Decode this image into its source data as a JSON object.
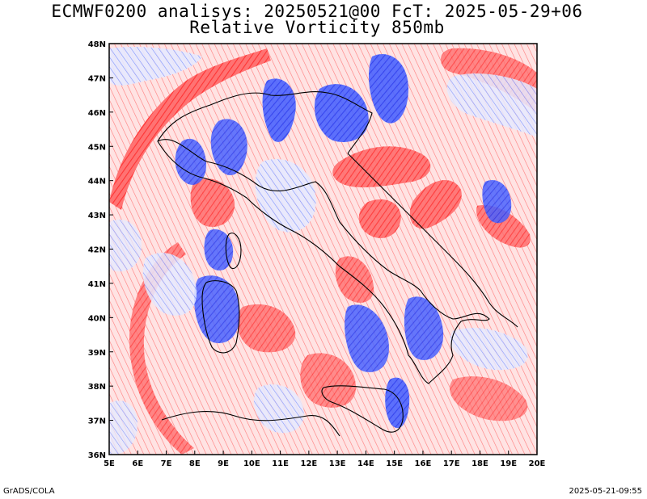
{
  "title": {
    "line1": "ECMWF0200 analisys: 20250521@00 FcT: 2025-05-29+06",
    "line2": "Relative Vorticity 850mb"
  },
  "map": {
    "lon_range": [
      5,
      20
    ],
    "lat_range": [
      36,
      48
    ],
    "x_ticks": [
      "5E",
      "6E",
      "7E",
      "8E",
      "9E",
      "10E",
      "11E",
      "12E",
      "13E",
      "14E",
      "15E",
      "16E",
      "17E",
      "18E",
      "19E",
      "20E"
    ],
    "y_ticks": [
      "36N",
      "37N",
      "38N",
      "39N",
      "40N",
      "41N",
      "42N",
      "43N",
      "44N",
      "45N",
      "46N",
      "47N",
      "48N"
    ],
    "colors": {
      "positive_contours": "#ff3b3b",
      "positive_light": "#ff8a8a",
      "negative_contours": "#3050ff",
      "negative_light": "#6f86ff",
      "coastline": "#000000",
      "frame": "#000000"
    }
  },
  "footer": {
    "left": "GrADS/COLA",
    "right": "2025-05-21-09:55"
  }
}
